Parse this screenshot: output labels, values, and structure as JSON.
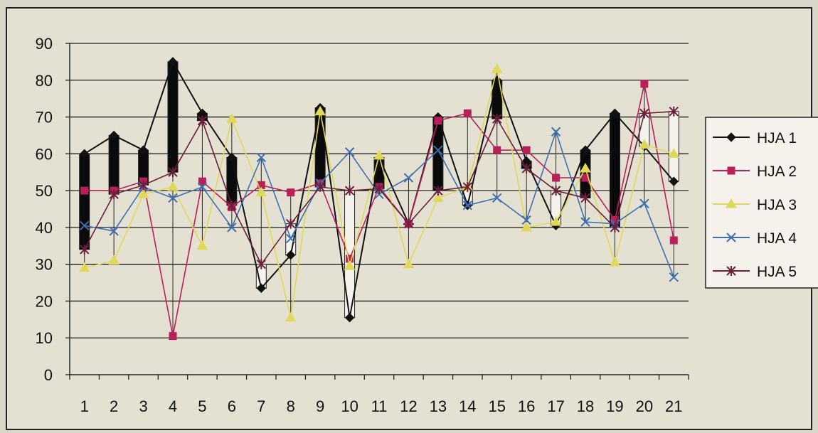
{
  "chart_data": {
    "type": "line",
    "title": "",
    "xlabel": "",
    "ylabel": "",
    "categories": [
      "1",
      "2",
      "3",
      "4",
      "5",
      "6",
      "7",
      "8",
      "9",
      "10",
      "11",
      "12",
      "13",
      "14",
      "15",
      "16",
      "17",
      "18",
      "19",
      "20",
      "21"
    ],
    "ylim": [
      0,
      90
    ],
    "yticks": [
      "0",
      "10",
      "20",
      "30",
      "40",
      "50",
      "60",
      "70",
      "80",
      "90"
    ],
    "grid": "horizontal",
    "legend_position": "right",
    "series": [
      {
        "name": "HJA 1",
        "color": "#111111",
        "marker": "diamond",
        "values": [
          60,
          65,
          61,
          85,
          71,
          59,
          23.5,
          32.5,
          72.5,
          15.5,
          59,
          41,
          70,
          46,
          80,
          58,
          40.5,
          61,
          71,
          62,
          52.5
        ]
      },
      {
        "name": "HJA 2",
        "color": "#b8205a",
        "marker": "square",
        "values": [
          50,
          50,
          52.5,
          10.5,
          52.5,
          45.5,
          51.5,
          49.5,
          52,
          31.5,
          51,
          41,
          69,
          71,
          61,
          61,
          53.5,
          53.5,
          42,
          79,
          36.5
        ]
      },
      {
        "name": "HJA 3",
        "color": "#e0d85a",
        "marker": "triangle",
        "values": [
          29,
          31,
          49,
          51,
          35,
          69.5,
          49.5,
          15.5,
          71.5,
          29.5,
          59.5,
          30,
          48,
          51,
          83,
          40,
          41.5,
          56,
          30.5,
          62.5,
          60
        ]
      },
      {
        "name": "HJA 4",
        "color": "#3f6fb0",
        "marker": "x",
        "values": [
          40.5,
          39,
          51,
          48,
          51,
          40,
          59,
          37,
          52,
          60.5,
          49,
          53.5,
          61,
          46,
          48,
          42,
          66,
          41.5,
          41,
          46.5,
          26.5
        ]
      },
      {
        "name": "HJA 5",
        "color": "#6a1f3a",
        "marker": "star",
        "values": [
          34,
          49,
          51.5,
          55,
          69,
          46,
          30,
          41,
          51,
          50,
          50.5,
          41,
          50,
          51,
          69.5,
          56,
          50,
          48,
          40,
          71,
          71.5
        ]
      }
    ]
  }
}
